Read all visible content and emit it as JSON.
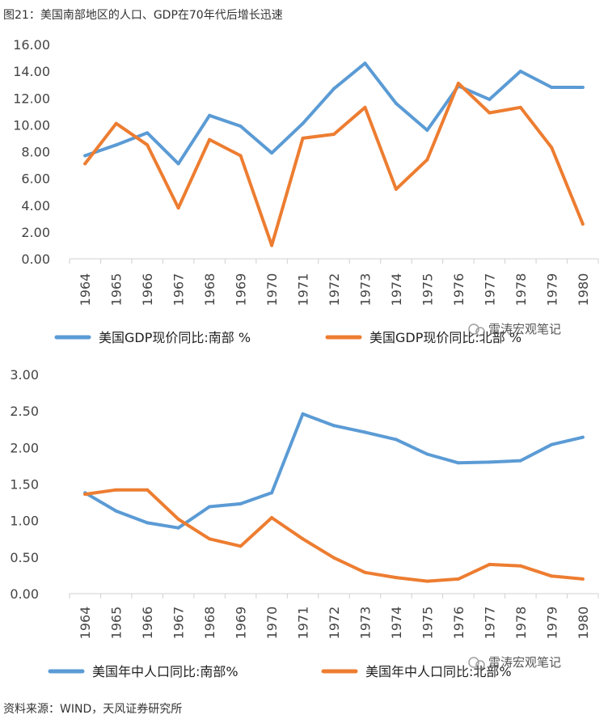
{
  "figure_title": "图21：美国南部地区的人口、GDP在70年代后增长迅速",
  "source": "资料来源：WIND，天风证券研究所",
  "watermark": "雷涛宏观笔记",
  "colors": {
    "south": "#5B9BD5",
    "north": "#ED7D31"
  },
  "chart_data": [
    {
      "type": "line",
      "title": "",
      "categories": [
        "1964",
        "1965",
        "1966",
        "1967",
        "1968",
        "1969",
        "1970",
        "1971",
        "1972",
        "1973",
        "1974",
        "1975",
        "1976",
        "1977",
        "1978",
        "1979",
        "1980"
      ],
      "ylim": [
        0,
        16
      ],
      "yticks": [
        "0.00",
        "2.00",
        "4.00",
        "6.00",
        "8.00",
        "10.00",
        "12.00",
        "14.00",
        "16.00"
      ],
      "grid": false,
      "legend_position": "bottom",
      "series": [
        {
          "name": "美国GDP现价同比:南部 %",
          "color": "#5B9BD5",
          "values": [
            7.7,
            8.5,
            9.4,
            7.1,
            10.7,
            9.9,
            7.9,
            10.1,
            12.7,
            14.6,
            11.6,
            9.6,
            12.9,
            11.9,
            14.0,
            12.8,
            12.8
          ]
        },
        {
          "name": "美国GDP现价同比:北部 %",
          "color": "#ED7D31",
          "values": [
            7.1,
            10.1,
            8.5,
            3.8,
            8.9,
            7.7,
            1.0,
            9.0,
            9.3,
            11.3,
            5.2,
            7.4,
            13.1,
            10.9,
            11.3,
            8.3,
            2.6
          ]
        }
      ]
    },
    {
      "type": "line",
      "title": "",
      "categories": [
        "1964",
        "1965",
        "1966",
        "1967",
        "1968",
        "1969",
        "1970",
        "1971",
        "1972",
        "1973",
        "1974",
        "1975",
        "1976",
        "1977",
        "1978",
        "1979",
        "1980"
      ],
      "ylim": [
        0,
        3
      ],
      "yticks": [
        "0.00",
        "0.50",
        "1.00",
        "1.50",
        "2.00",
        "2.50",
        "3.00"
      ],
      "grid": false,
      "legend_position": "bottom",
      "series": [
        {
          "name": "美国年中人口同比:南部%",
          "color": "#5B9BD5",
          "values": [
            1.38,
            1.13,
            0.97,
            0.9,
            1.19,
            1.23,
            1.38,
            2.46,
            2.3,
            2.21,
            2.11,
            1.91,
            1.79,
            1.8,
            1.82,
            2.04,
            2.14
          ]
        },
        {
          "name": "美国年中人口同比:北部%",
          "color": "#ED7D31",
          "values": [
            1.36,
            1.42,
            1.42,
            1.02,
            0.75,
            0.65,
            1.04,
            0.75,
            0.49,
            0.29,
            0.22,
            0.17,
            0.2,
            0.4,
            0.38,
            0.24,
            0.2
          ]
        }
      ]
    }
  ]
}
